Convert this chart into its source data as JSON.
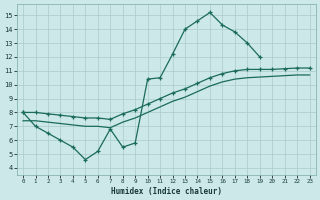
{
  "xlabel": "Humidex (Indice chaleur)",
  "bg_color": "#cce8e8",
  "grid_color": "#aacccc",
  "line_color": "#1a6b5a",
  "xlim": [
    -0.5,
    23.5
  ],
  "ylim": [
    3.5,
    15.8
  ],
  "yticks": [
    4,
    5,
    6,
    7,
    8,
    9,
    10,
    11,
    12,
    13,
    14,
    15
  ],
  "xticks": [
    0,
    1,
    2,
    3,
    4,
    5,
    6,
    7,
    8,
    9,
    10,
    11,
    12,
    13,
    14,
    15,
    16,
    17,
    18,
    19,
    20,
    21,
    22,
    23
  ],
  "line1_x": [
    0,
    1,
    2,
    3,
    4,
    5,
    6,
    7,
    8,
    9,
    10,
    11,
    12,
    13,
    14,
    15,
    16,
    17,
    18,
    19
  ],
  "line1_y": [
    8.0,
    7.0,
    6.5,
    6.0,
    5.5,
    4.6,
    5.2,
    6.8,
    5.5,
    5.8,
    10.4,
    10.5,
    12.2,
    14.0,
    14.6,
    15.2,
    14.3,
    13.8,
    13.0,
    12.0
  ],
  "line2_x": [
    0,
    1,
    2,
    3,
    4,
    5,
    6,
    7,
    8,
    9,
    10,
    11,
    12,
    13,
    14,
    15,
    16,
    17,
    18,
    19,
    20,
    21,
    22,
    23
  ],
  "line2_y": [
    8.0,
    8.0,
    7.9,
    7.8,
    7.7,
    7.6,
    7.6,
    7.5,
    7.9,
    8.2,
    8.6,
    9.0,
    9.4,
    9.7,
    10.1,
    10.5,
    10.8,
    11.0,
    11.1,
    11.1,
    11.1,
    11.15,
    11.2,
    11.2
  ],
  "line3_x": [
    0,
    1,
    2,
    3,
    4,
    5,
    6,
    7,
    8,
    9,
    10,
    11,
    12,
    13,
    14,
    15,
    16,
    17,
    18,
    19,
    20,
    21,
    22,
    23
  ],
  "line3_y": [
    7.4,
    7.4,
    7.3,
    7.2,
    7.1,
    7.0,
    7.0,
    6.9,
    7.3,
    7.6,
    8.0,
    8.4,
    8.8,
    9.1,
    9.5,
    9.9,
    10.2,
    10.4,
    10.5,
    10.55,
    10.6,
    10.65,
    10.7,
    10.7
  ]
}
